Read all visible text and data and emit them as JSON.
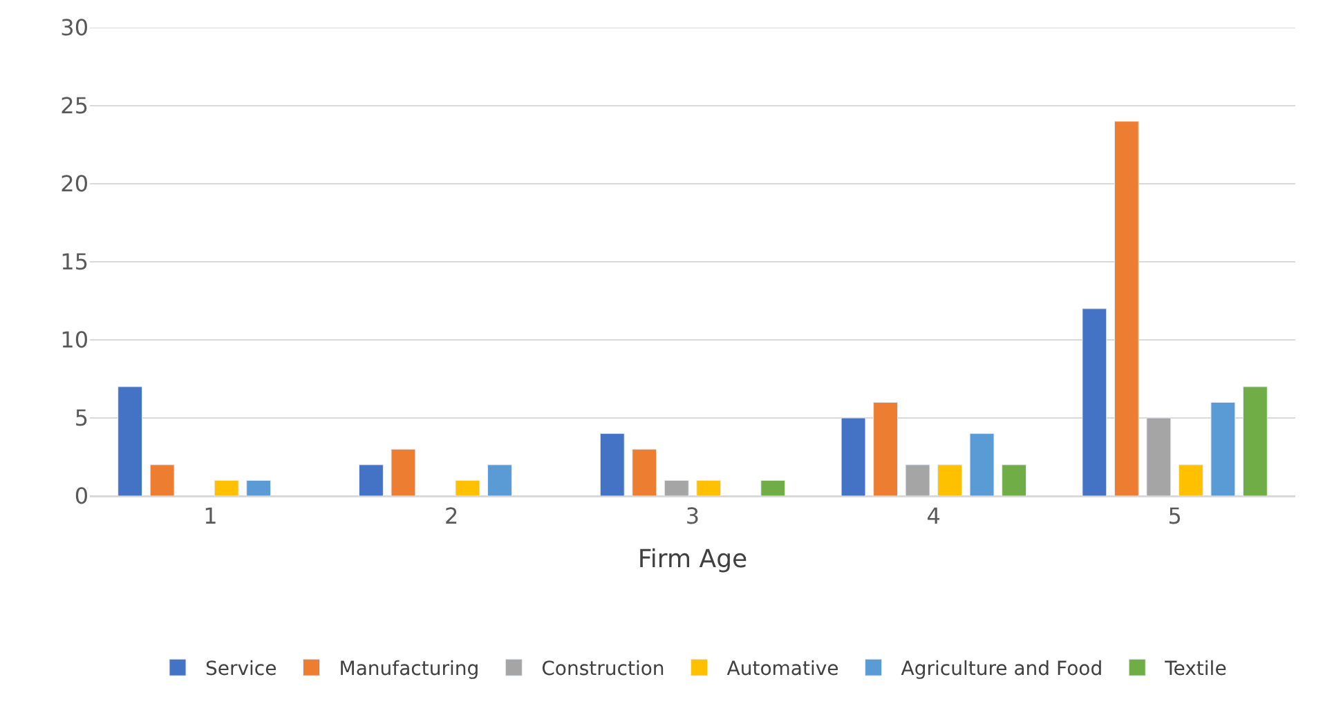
{
  "chart_data": {
    "type": "bar",
    "xlabel": "Firm Age",
    "categories": [
      "1",
      "2",
      "3",
      "4",
      "5"
    ],
    "series": [
      {
        "name": "Service",
        "color": "#4472c4",
        "values": [
          7,
          2,
          4,
          5,
          12
        ]
      },
      {
        "name": "Manufacturing",
        "color": "#ed7d31",
        "values": [
          2,
          3,
          3,
          6,
          24
        ]
      },
      {
        "name": "Construction",
        "color": "#a5a5a5",
        "values": [
          null,
          null,
          1,
          2,
          5
        ]
      },
      {
        "name": "Automative",
        "color": "#ffc000",
        "values": [
          1,
          1,
          1,
          2,
          2
        ]
      },
      {
        "name": "Agriculture and Food",
        "color": "#5b9bd5",
        "values": [
          1,
          2,
          null,
          4,
          6
        ]
      },
      {
        "name": "Textile",
        "color": "#70ad47",
        "values": [
          null,
          null,
          1,
          2,
          7
        ]
      }
    ],
    "ylim": [
      0,
      30
    ],
    "yticks": [
      0,
      5,
      10,
      15,
      20,
      25,
      30
    ],
    "grid": "y",
    "legend": "bottom"
  }
}
